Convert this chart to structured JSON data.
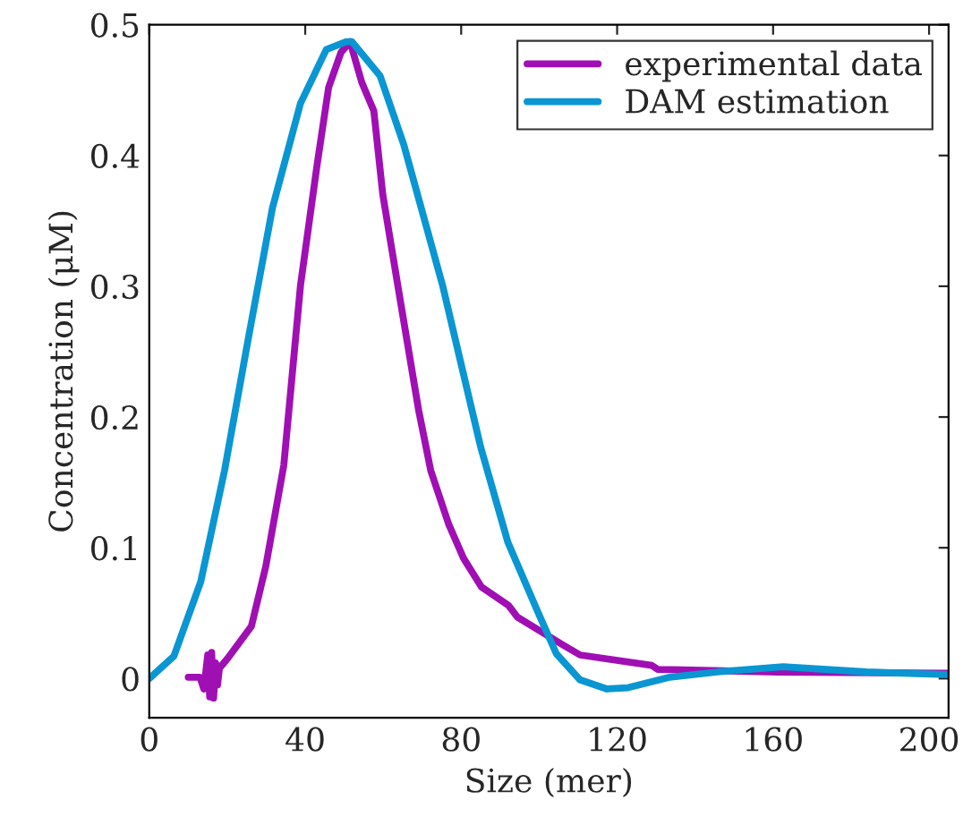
{
  "chart_data": {
    "type": "line",
    "xlabel": "Size (mer)",
    "ylabel": "Concentration (μM)",
    "xlim": [
      0,
      205
    ],
    "ylim": [
      -0.03,
      0.5
    ],
    "xticks": [
      0,
      40,
      80,
      120,
      160,
      200
    ],
    "yticks": [
      0,
      0.1,
      0.2,
      0.3,
      0.4,
      0.5
    ],
    "grid": false,
    "legend": "top right",
    "line_style": "solid",
    "marker": "none",
    "series": [
      {
        "name": "experimental data",
        "color": "#a00fb4",
        "x": [
          10,
          13,
          14,
          15,
          15.5,
          16,
          16.5,
          17,
          17.5,
          18,
          20,
          26.2,
          29.9,
          34.5,
          38.8,
          43,
          46,
          49.2,
          51.5,
          54.5,
          57.6,
          59.9,
          64.5,
          69.1,
          72.2,
          76.8,
          80.6,
          85.2,
          92.1,
          94.4,
          105.9,
          110.5,
          128.9,
          130.4,
          161,
          205
        ],
        "values": [
          0.001,
          0.001,
          -0.008,
          0.018,
          -0.014,
          0.02,
          -0.015,
          0.012,
          -0.005,
          0.008,
          0.015,
          0.04,
          0.086,
          0.163,
          0.301,
          0.392,
          0.452,
          0.479,
          0.487,
          0.456,
          0.434,
          0.37,
          0.287,
          0.205,
          0.159,
          0.118,
          0.092,
          0.07,
          0.056,
          0.047,
          0.026,
          0.018,
          0.01,
          0.007,
          0.005,
          0.004
        ]
      },
      {
        "name": "DAM estimation",
        "color": "#0a96d2",
        "x": [
          0,
          6.3,
          13.2,
          19.3,
          25.4,
          31.6,
          38.8,
          45.4,
          50.5,
          52,
          59.2,
          65.3,
          75.2,
          85,
          92,
          99.8,
          104.4,
          110.5,
          117.4,
          122.8,
          133.5,
          145.7,
          162.6,
          184,
          205
        ],
        "values": [
          0,
          0.017,
          0.074,
          0.159,
          0.26,
          0.36,
          0.44,
          0.481,
          0.487,
          0.487,
          0.461,
          0.408,
          0.301,
          0.177,
          0.104,
          0.05,
          0.019,
          -0.001,
          -0.008,
          -0.007,
          0.001,
          0.005,
          0.009,
          0.005,
          0.003
        ]
      }
    ]
  }
}
